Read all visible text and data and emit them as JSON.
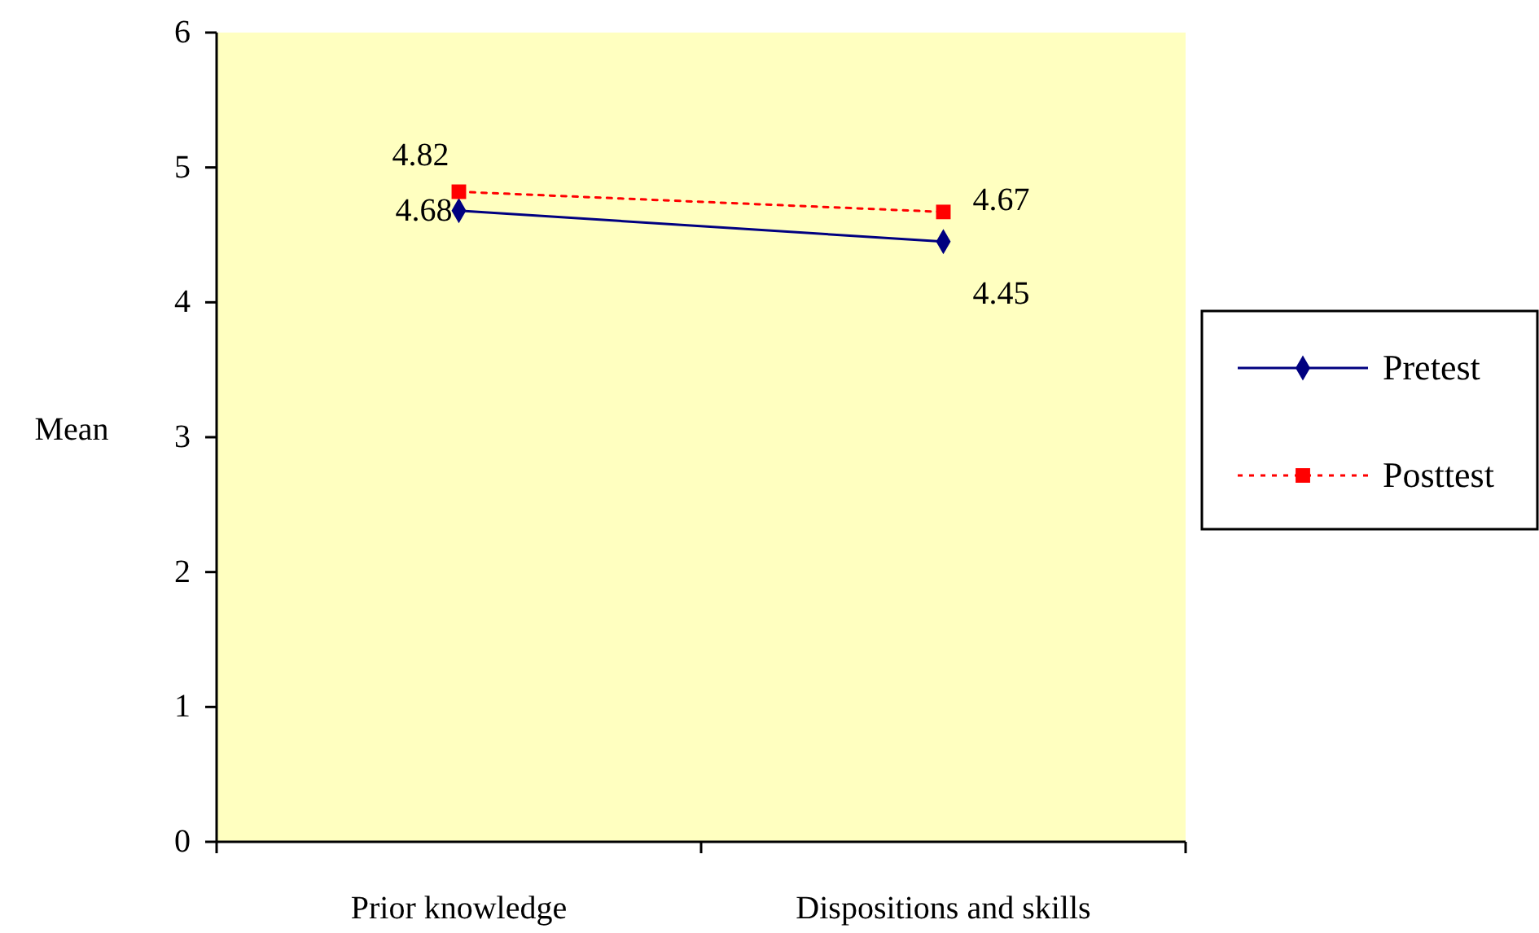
{
  "chart_data": {
    "type": "line",
    "ylabel": "Mean",
    "categories": [
      "Prior knowledge",
      "Dispositions and skills"
    ],
    "ylim": [
      0,
      6
    ],
    "yticks": [
      0,
      1,
      2,
      3,
      4,
      5,
      6
    ],
    "grid": false,
    "legend": "right",
    "data_labels": true,
    "series": [
      {
        "name": "Pretest",
        "color": "#000080",
        "values": [
          4.68,
          4.45
        ],
        "marker": "diamond",
        "line_style": "solid"
      },
      {
        "name": "Posttest",
        "color": "#ff0000",
        "values": [
          4.82,
          4.67
        ],
        "marker": "square",
        "line_style": "dotted"
      }
    ]
  }
}
